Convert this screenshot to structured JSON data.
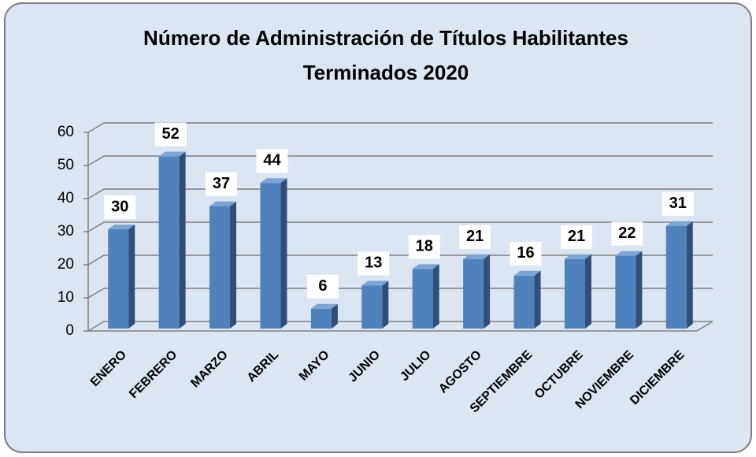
{
  "chart_data": {
    "type": "bar3d",
    "title": [
      "Número de Administración de Títulos Habilitantes",
      "Terminados 2020"
    ],
    "categories": [
      "ENERO",
      "FEBRERO",
      "MARZO",
      "ABRIL",
      "MAYO",
      "JUNIO",
      "JULIO",
      "AGOSTO",
      "SEPTIEMBRE",
      "OCTUBRE",
      "NOVIEMBRE",
      "DICIEMBRE"
    ],
    "values": [
      30,
      52,
      37,
      44,
      6,
      13,
      18,
      21,
      16,
      21,
      22,
      31
    ],
    "color": "#4f81bd",
    "ylim": [
      0,
      60
    ],
    "yticks": [
      0,
      10,
      20,
      30,
      40,
      50,
      60
    ],
    "grid": true
  }
}
